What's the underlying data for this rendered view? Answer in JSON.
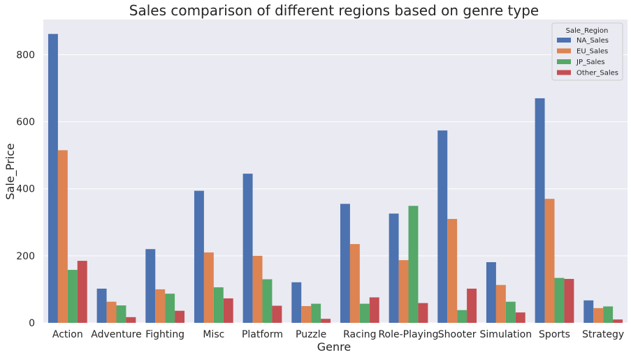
{
  "chart_data": {
    "type": "bar",
    "title": "Sales comparison of different regions based on genre type",
    "xlabel": "Genre",
    "ylabel": "Sale_Price",
    "ylim": [
      0,
      905
    ],
    "yticks": [
      0,
      200,
      400,
      600,
      800
    ],
    "grid": true,
    "legend": {
      "title": "Sale_Region",
      "placement": "top-right"
    },
    "categories": [
      "Action",
      "Adventure",
      "Fighting",
      "Misc",
      "Platform",
      "Puzzle",
      "Racing",
      "Role-Playing",
      "Shooter",
      "Simulation",
      "Sports",
      "Strategy"
    ],
    "series": [
      {
        "name": "NA_Sales",
        "color": "#4c72b0",
        "values": [
          862,
          102,
          220,
          394,
          445,
          121,
          355,
          326,
          574,
          181,
          670,
          67
        ]
      },
      {
        "name": "EU_Sales",
        "color": "#dd8452",
        "values": [
          515,
          63,
          100,
          210,
          200,
          50,
          235,
          187,
          310,
          113,
          370,
          44
        ]
      },
      {
        "name": "JP_Sales",
        "color": "#55a868",
        "values": [
          158,
          52,
          87,
          106,
          130,
          57,
          57,
          349,
          38,
          63,
          134,
          49
        ]
      },
      {
        "name": "Other_Sales",
        "color": "#c44e52",
        "values": [
          185,
          17,
          36,
          73,
          51,
          12,
          76,
          59,
          102,
          31,
          131,
          10
        ]
      }
    ]
  }
}
